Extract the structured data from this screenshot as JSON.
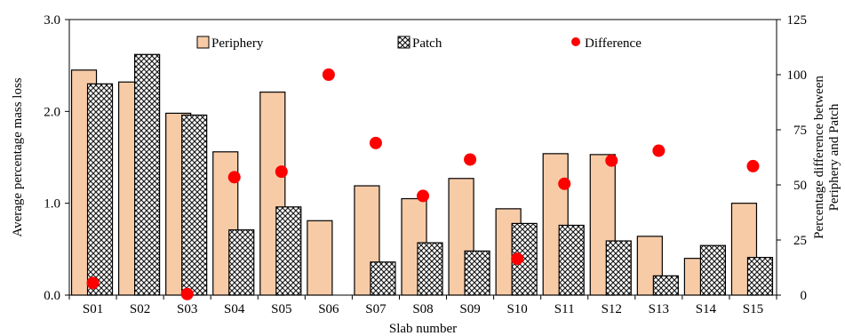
{
  "chart_data": {
    "type": "bar",
    "categories": [
      "S01",
      "S02",
      "S03",
      "S04",
      "S05",
      "S06",
      "S07",
      "S08",
      "S09",
      "S10",
      "S11",
      "S12",
      "S13",
      "S14",
      "S15"
    ],
    "series": [
      {
        "name": "Periphery",
        "axis": "left",
        "kind": "bar",
        "color": "#f8cba7",
        "values": [
          2.45,
          2.32,
          1.98,
          1.56,
          2.21,
          0.81,
          1.19,
          1.05,
          1.27,
          0.94,
          1.54,
          1.53,
          0.64,
          0.4,
          1.0
        ]
      },
      {
        "name": "Patch",
        "axis": "left",
        "kind": "bar",
        "pattern": "crosshatch",
        "values": [
          2.3,
          2.62,
          1.96,
          0.71,
          0.96,
          0,
          0.36,
          0.57,
          0.48,
          0.78,
          0.76,
          0.59,
          0.21,
          0.54,
          0.41
        ]
      },
      {
        "name": "Difference",
        "axis": "right",
        "kind": "scatter",
        "color": "#ff0000",
        "values": [
          5.5,
          null,
          0.5,
          53.5,
          56,
          100,
          69,
          45,
          61.5,
          16.5,
          50.5,
          61,
          65.5,
          null,
          58.5
        ]
      }
    ],
    "xlabel": "Slab number",
    "ylabel": "Average percentage mass loss",
    "y2label_line1": "Percentage difference between",
    "y2label_line2": "Periphery and Patch",
    "ylim": [
      0,
      3.0
    ],
    "y2lim": [
      0,
      125
    ],
    "yticks": [
      "0.0",
      "1.0",
      "2.0",
      "3.0"
    ],
    "y2ticks": [
      "0",
      "25",
      "50",
      "75",
      "100",
      "125"
    ],
    "legend": {
      "position": "top",
      "entries": [
        "Periphery",
        "Patch",
        "Difference"
      ]
    },
    "grid": false
  }
}
